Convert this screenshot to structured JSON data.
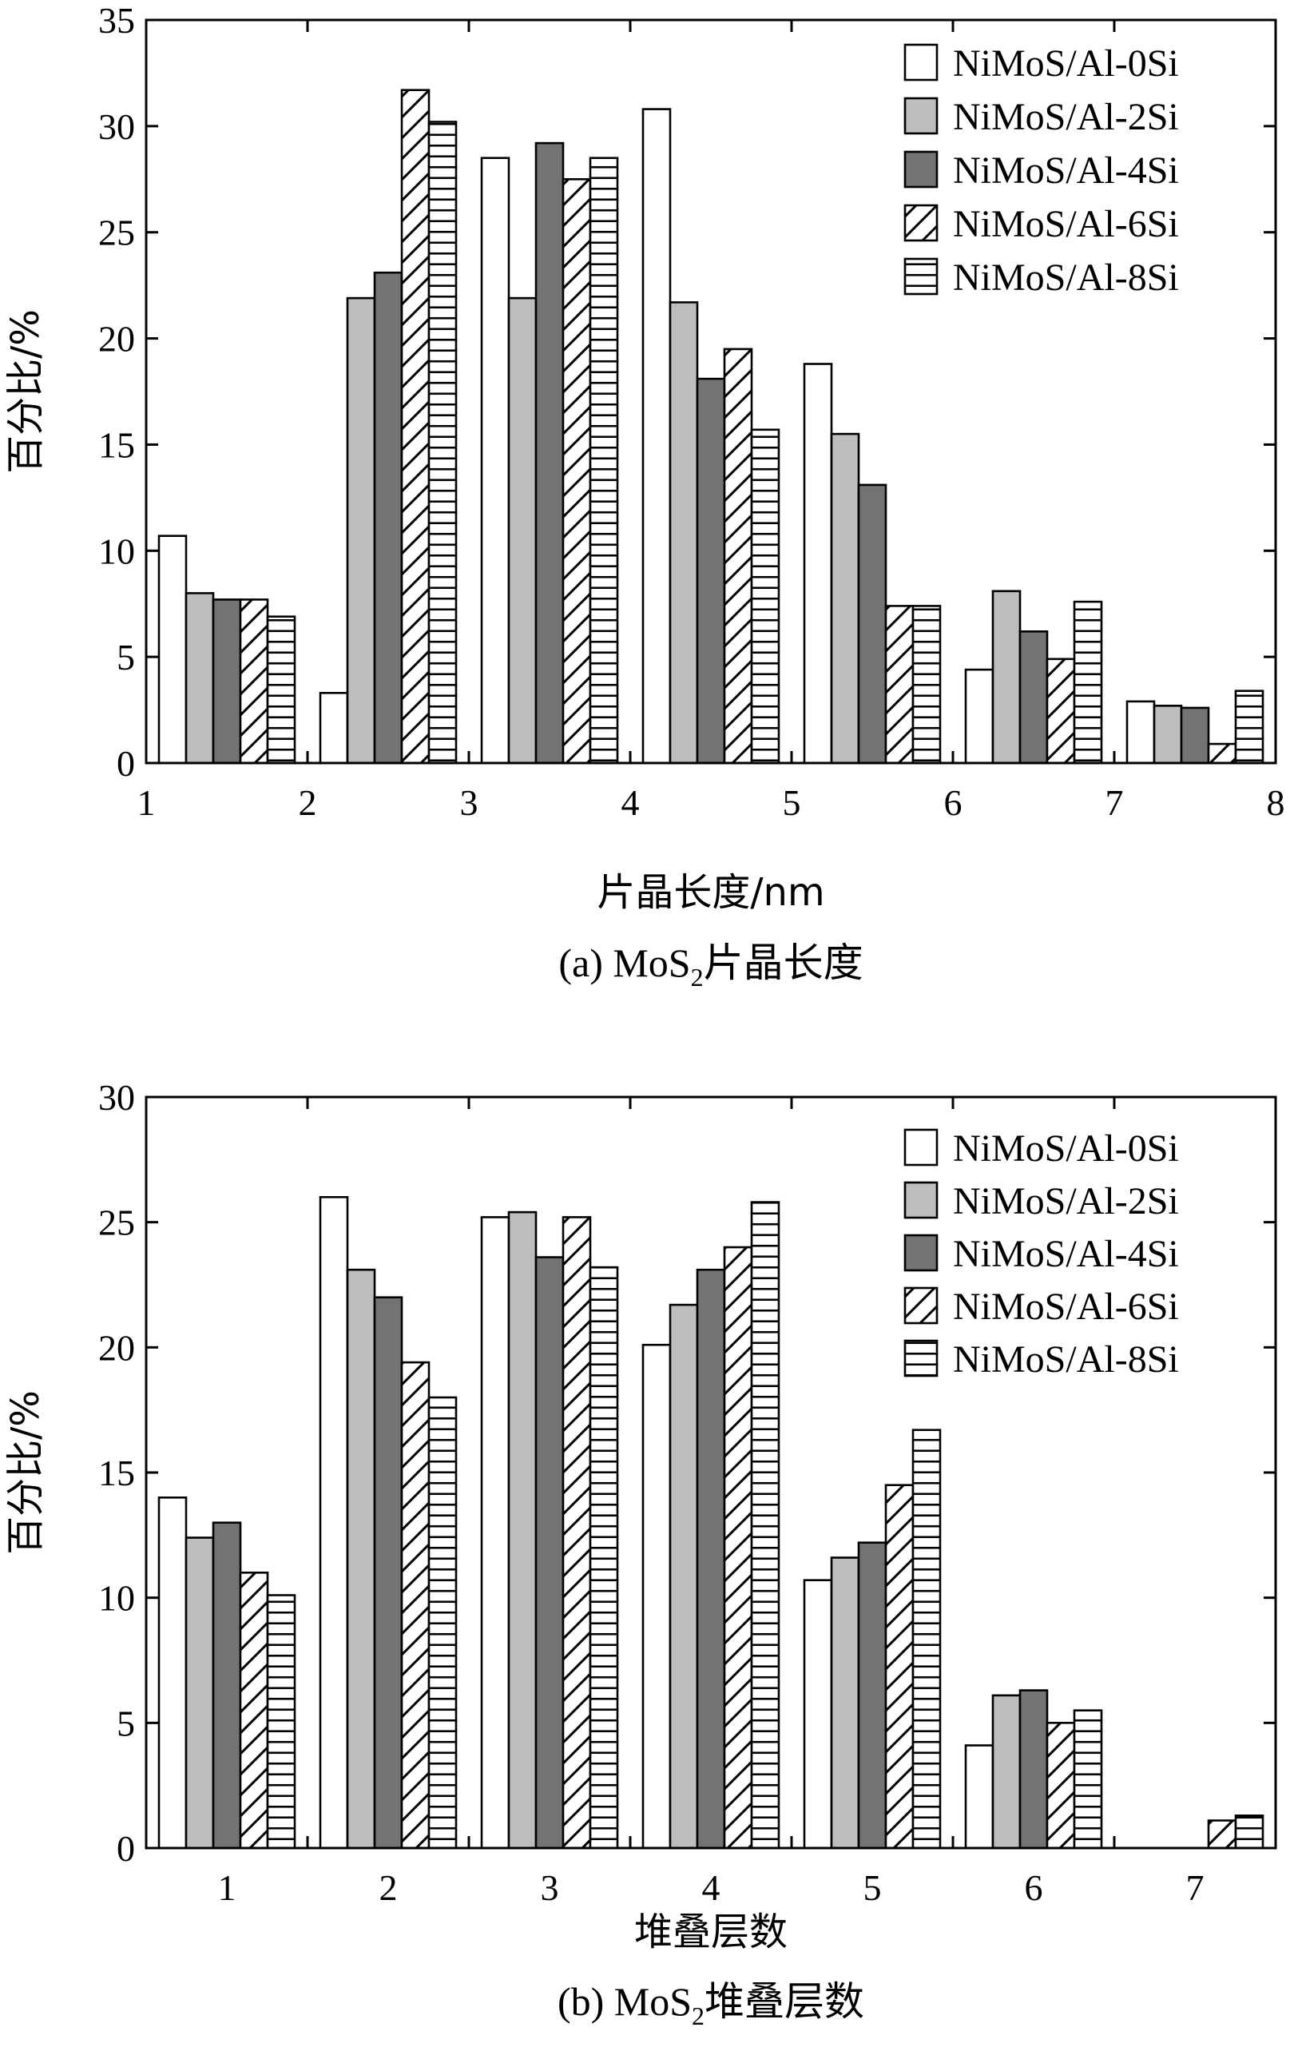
{
  "chart_data": [
    {
      "type": "bar",
      "caption": {
        "prefix": "(a) MoS",
        "subscript": "2",
        "suffix": "片晶长度"
      },
      "xlabel": "片晶长度/nm",
      "ylabel": "百分比/%",
      "xlim": [
        1,
        8
      ],
      "ylim": [
        0,
        35
      ],
      "xticks": [
        "1",
        "2",
        "3",
        "4",
        "5",
        "6",
        "7",
        "8"
      ],
      "yticks": [
        "0",
        "5",
        "10",
        "15",
        "20",
        "25",
        "30",
        "35"
      ],
      "categories": [
        "1-2",
        "2-3",
        "3-4",
        "4-5",
        "5-6",
        "6-7",
        "7-8"
      ],
      "legend_position": "top-right",
      "series": [
        {
          "name": "NiMoS/Al-0Si",
          "pattern": "white",
          "values": [
            10.7,
            3.3,
            28.5,
            30.8,
            18.8,
            4.4,
            2.9
          ]
        },
        {
          "name": "NiMoS/Al-2Si",
          "pattern": "light-gray",
          "values": [
            8.0,
            21.9,
            21.9,
            21.7,
            15.5,
            8.1,
            2.7
          ]
        },
        {
          "name": "NiMoS/Al-4Si",
          "pattern": "dark-gray",
          "values": [
            7.7,
            23.1,
            29.2,
            18.1,
            13.1,
            6.2,
            2.6
          ]
        },
        {
          "name": "NiMoS/Al-6Si",
          "pattern": "diagonal-hatch",
          "values": [
            7.7,
            31.7,
            27.5,
            19.5,
            7.4,
            4.9,
            0.9
          ]
        },
        {
          "name": "NiMoS/Al-8Si",
          "pattern": "horizontal-hatch",
          "values": [
            6.9,
            30.2,
            28.5,
            15.7,
            7.4,
            7.6,
            3.4
          ]
        }
      ]
    },
    {
      "type": "bar",
      "caption": {
        "prefix": "(b) MoS",
        "subscript": "2",
        "suffix": "堆叠层数"
      },
      "xlabel": "堆叠层数",
      "ylabel": "百分比/%",
      "ylim": [
        0,
        30
      ],
      "yticks": [
        "0",
        "5",
        "10",
        "15",
        "20",
        "25",
        "30"
      ],
      "categories": [
        "1",
        "2",
        "3",
        "4",
        "5",
        "6",
        "7"
      ],
      "legend_position": "top-right",
      "series": [
        {
          "name": "NiMoS/Al-0Si",
          "pattern": "white",
          "values": [
            14.0,
            26.0,
            25.2,
            20.1,
            10.7,
            4.1,
            0
          ]
        },
        {
          "name": "NiMoS/Al-2Si",
          "pattern": "light-gray",
          "values": [
            12.4,
            23.1,
            25.4,
            21.7,
            11.6,
            6.1,
            0
          ]
        },
        {
          "name": "NiMoS/Al-4Si",
          "pattern": "dark-gray",
          "values": [
            13.0,
            22.0,
            23.6,
            23.1,
            12.2,
            6.3,
            0
          ]
        },
        {
          "name": "NiMoS/Al-6Si",
          "pattern": "diagonal-hatch",
          "values": [
            11.0,
            19.4,
            25.2,
            24.0,
            14.5,
            5.0,
            1.1
          ]
        },
        {
          "name": "NiMoS/Al-8Si",
          "pattern": "horizontal-hatch",
          "values": [
            10.1,
            18.0,
            23.2,
            25.8,
            16.7,
            5.5,
            1.3
          ]
        }
      ]
    }
  ],
  "colors": {
    "white": "#ffffff",
    "light_gray": "#bdbdbd",
    "dark_gray": "#737373",
    "stroke": "#000000"
  }
}
